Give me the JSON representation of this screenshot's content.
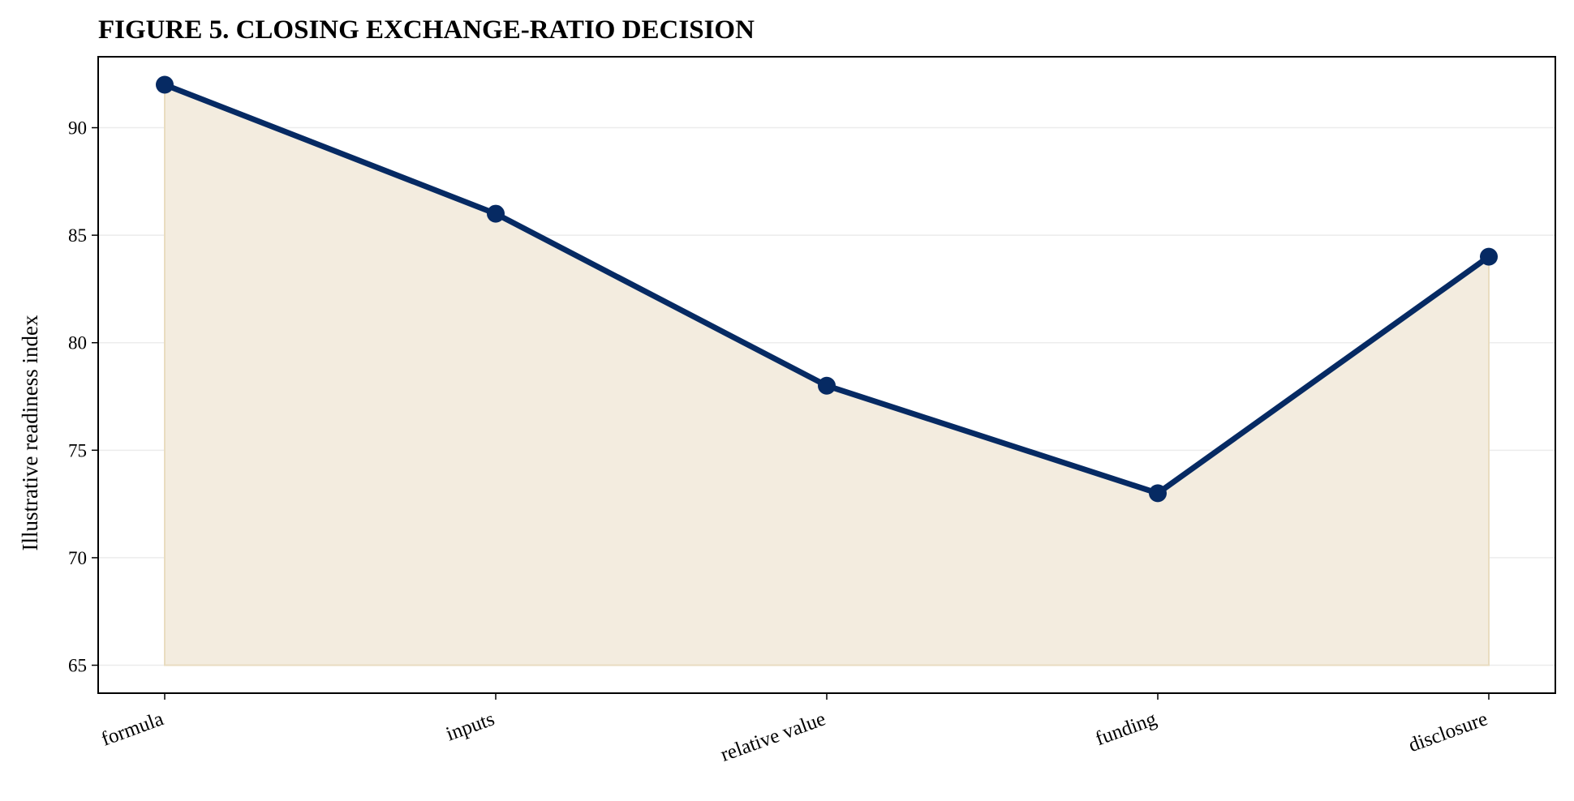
{
  "chart_data": {
    "type": "area",
    "title": "FIGURE 5. CLOSING EXCHANGE-RATIO DECISION",
    "xlabel": "",
    "ylabel": "Illustrative readiness index",
    "categories": [
      "formula",
      "inputs",
      "relative value",
      "funding",
      "disclosure"
    ],
    "series": [
      {
        "values": [
          92,
          86,
          78,
          73,
          84
        ]
      }
    ],
    "fill_baseline": 65,
    "ylim": [
      63.7,
      93.3
    ],
    "yticks": [
      65,
      70,
      75,
      80,
      85,
      90
    ],
    "grid": "horizontal",
    "x_tick_rotation_deg": 20,
    "colors": {
      "line": "#062a63",
      "marker": "#062a63",
      "fill": "#f3ecdf",
      "fill_edge": "#e9dcc0",
      "grid": "#ececec",
      "axis": "#000000"
    }
  }
}
